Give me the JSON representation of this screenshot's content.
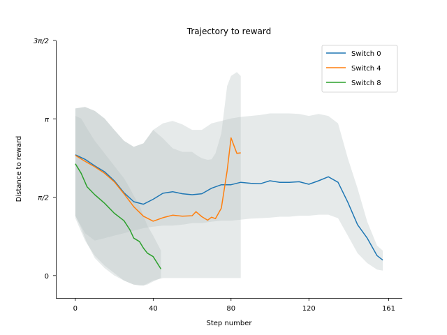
{
  "chart_data": {
    "type": "line",
    "title": "Trajectory to reward",
    "xlabel": "Step number",
    "ylabel": "Distance to reward",
    "xlim": [
      -10,
      168
    ],
    "ylim": [
      -0.45,
      4.712
    ],
    "x_ticks": [
      0,
      40,
      80,
      120,
      161
    ],
    "y_ticks": [
      {
        "value": 0,
        "label": "0"
      },
      {
        "value": 1.5708,
        "label": "π/2"
      },
      {
        "value": 3.1416,
        "label": "π"
      },
      {
        "value": 4.7124,
        "label": "3π/2"
      }
    ],
    "grid": false,
    "legend_position": "top-right",
    "band_color": "#b8c2c2",
    "series": [
      {
        "name": "Switch 0",
        "color": "#1f77b4",
        "x": [
          0,
          5,
          10,
          15,
          20,
          25,
          30,
          35,
          40,
          45,
          50,
          55,
          60,
          65,
          70,
          75,
          80,
          85,
          90,
          95,
          100,
          105,
          110,
          115,
          120,
          125,
          130,
          135,
          140,
          145,
          150,
          155,
          158
        ],
        "y": [
          2.42,
          2.33,
          2.2,
          2.08,
          1.9,
          1.66,
          1.48,
          1.43,
          1.53,
          1.65,
          1.68,
          1.64,
          1.62,
          1.64,
          1.75,
          1.82,
          1.82,
          1.87,
          1.85,
          1.84,
          1.9,
          1.87,
          1.87,
          1.88,
          1.83,
          1.9,
          1.98,
          1.87,
          1.47,
          1.02,
          0.75,
          0.4,
          0.31
        ],
        "band_lower": [
          1.2,
          0.85,
          0.7,
          0.75,
          0.8,
          0.85,
          0.9,
          0.95,
          0.98,
          1.0,
          1.0,
          1.02,
          1.05,
          1.05,
          1.08,
          1.1,
          1.1,
          1.12,
          1.14,
          1.15,
          1.16,
          1.18,
          1.18,
          1.2,
          1.2,
          1.22,
          1.22,
          1.15,
          0.8,
          0.45,
          0.25,
          0.12,
          0.1
        ],
        "band_upper": [
          3.35,
          3.38,
          3.3,
          3.15,
          2.92,
          2.7,
          2.58,
          2.65,
          2.92,
          3.05,
          3.1,
          3.03,
          2.92,
          2.92,
          3.05,
          3.1,
          3.15,
          3.18,
          3.2,
          3.22,
          3.25,
          3.25,
          3.25,
          3.24,
          3.2,
          3.24,
          3.2,
          3.05,
          2.35,
          1.75,
          1.08,
          0.6,
          0.5
        ]
      },
      {
        "name": "Switch 4",
        "color": "#ff7f0e",
        "x": [
          0,
          5,
          10,
          15,
          20,
          25,
          30,
          35,
          40,
          45,
          50,
          55,
          60,
          62,
          65,
          68,
          70,
          72,
          75,
          78,
          80,
          83,
          85
        ],
        "y": [
          2.41,
          2.29,
          2.18,
          2.05,
          1.88,
          1.64,
          1.38,
          1.19,
          1.09,
          1.16,
          1.21,
          1.19,
          1.2,
          1.28,
          1.18,
          1.11,
          1.17,
          1.14,
          1.35,
          2.1,
          2.76,
          2.45,
          2.46
        ],
        "band_lower": [
          1.15,
          0.7,
          0.4,
          0.2,
          0.05,
          -0.1,
          -0.18,
          -0.2,
          -0.1,
          -0.05,
          -0.05,
          -0.05,
          -0.05,
          -0.05,
          -0.05,
          -0.05,
          -0.05,
          -0.05,
          -0.05,
          -0.05,
          -0.05,
          -0.05,
          -0.05
        ],
        "band_upper": [
          3.35,
          3.38,
          3.3,
          3.15,
          2.92,
          2.7,
          2.58,
          2.65,
          2.92,
          2.75,
          2.55,
          2.48,
          2.48,
          2.42,
          2.35,
          2.32,
          2.33,
          2.45,
          2.85,
          3.8,
          4.0,
          4.08,
          4.0
        ]
      },
      {
        "name": "Switch 8",
        "color": "#2ca02c",
        "x": [
          0,
          3,
          6,
          10,
          15,
          20,
          25,
          28,
          30,
          33,
          35,
          37,
          40,
          44
        ],
        "y": [
          2.24,
          2.05,
          1.78,
          1.62,
          1.45,
          1.25,
          1.1,
          0.92,
          0.75,
          0.68,
          0.55,
          0.45,
          0.38,
          0.13
        ],
        "band_lower": [
          1.2,
          0.95,
          0.65,
          0.35,
          0.15,
          0.0,
          -0.1,
          -0.15,
          -0.18,
          -0.2,
          -0.2,
          -0.18,
          -0.12,
          -0.05
        ],
        "band_upper": [
          3.2,
          3.15,
          2.95,
          2.7,
          2.45,
          2.2,
          1.95,
          1.75,
          1.6,
          1.4,
          1.2,
          1.0,
          0.8,
          0.5
        ]
      }
    ]
  }
}
